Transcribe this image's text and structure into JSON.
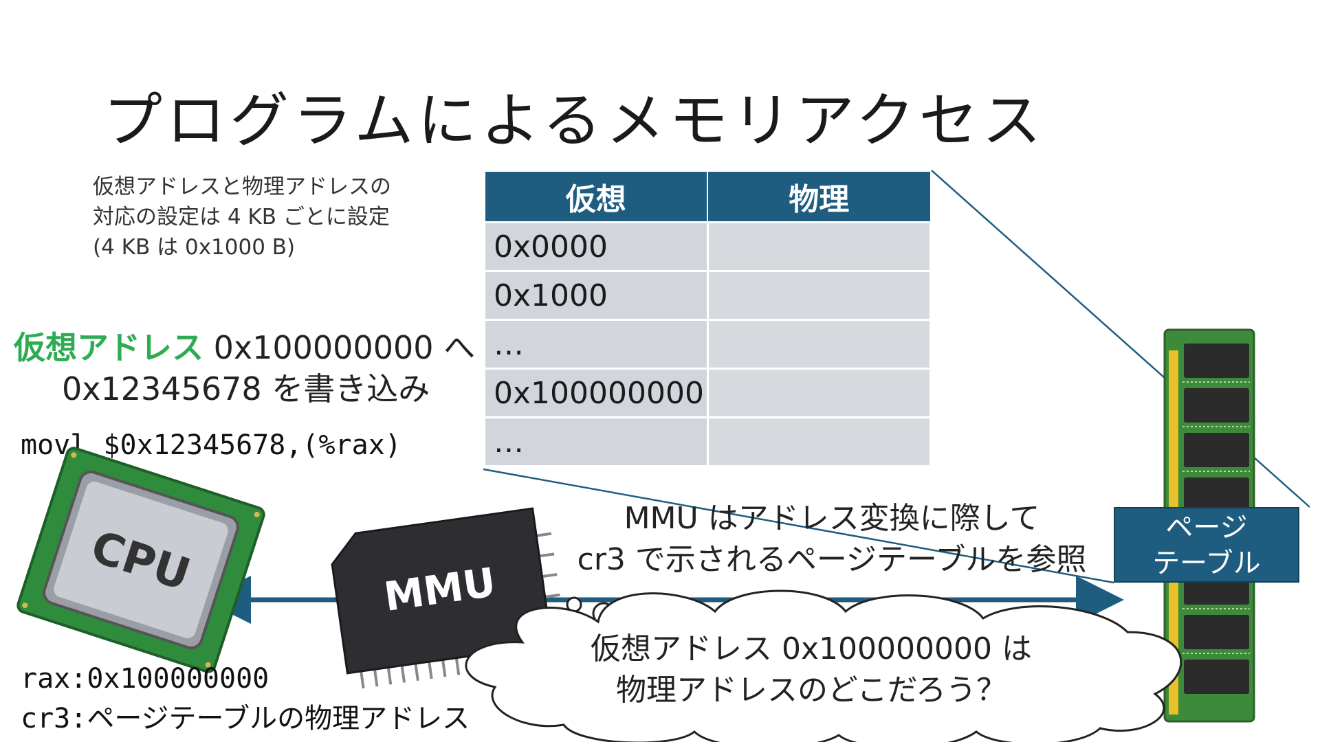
{
  "title": "プログラムによるメモリアクセス",
  "note": {
    "line1": "仮想アドレスと物理アドレスの",
    "line2": "対応の設定は 4 KB ごとに設定",
    "line3": "(4 KB は 0x1000 B)"
  },
  "statement": {
    "highlight": "仮想アドレス",
    "line1_rest": " 0x100000000 へ",
    "line2": "0x12345678 を書き込み"
  },
  "code": "movl $0x12345678,(%rax)",
  "registers": {
    "rax": "rax:0x100000000",
    "cr3_label": "cr3:",
    "cr3_value": "ページテーブルの物理アドレス"
  },
  "page_table": {
    "headers": [
      "仮想",
      "物理"
    ],
    "rows": [
      [
        "0x0000",
        ""
      ],
      [
        "0x1000",
        ""
      ],
      [
        "…",
        ""
      ],
      [
        "0x100000000",
        ""
      ],
      [
        "…",
        ""
      ]
    ]
  },
  "mmu_note": {
    "line1": "MMU はアドレス変換に際して",
    "line2": "cr3 で示されるページテーブルを参照"
  },
  "cloud": {
    "line1": "仮想アドレス 0x100000000 は",
    "line2": "物理アドレスのどこだろう？"
  },
  "page_table_box": {
    "line1": "ページ",
    "line2": "テーブル"
  },
  "cpu_label": "CPU",
  "mmu_label": "MMU",
  "colors": {
    "accent": "#1f5d80",
    "highlight": "#2eac53",
    "cell": "#d2d6dc"
  }
}
